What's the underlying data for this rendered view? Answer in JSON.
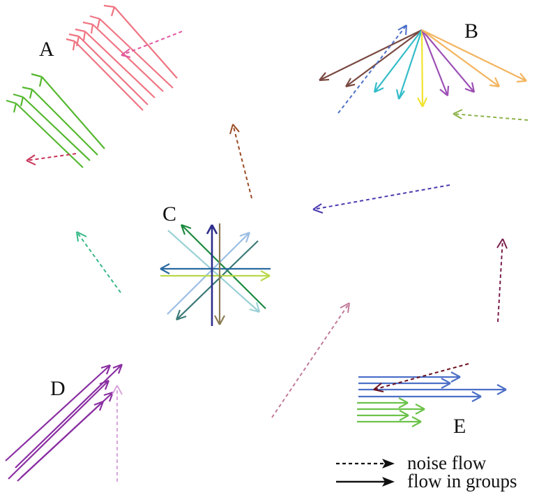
{
  "group_labels": {
    "A": "A",
    "B": "B",
    "C": "C",
    "D": "D",
    "E": "E"
  },
  "legend": {
    "noise_flow": "noise flow",
    "flow_in_groups": "flow in groups"
  },
  "colors": {
    "group_a_salmon": "#ef7482",
    "group_a_green": "#54b82f",
    "group_b_brown": "#7a4a42",
    "group_b_cyan": "#33bcc9",
    "group_b_yellow": "#f1e32e",
    "group_b_purple": "#9c4fb4",
    "group_b_orange": "#f3b45f",
    "group_d_purple": "#8a2fa2",
    "group_e_blue": "#4c6fc7",
    "group_e_green": "#6cc24a",
    "legend": "#111111"
  }
}
